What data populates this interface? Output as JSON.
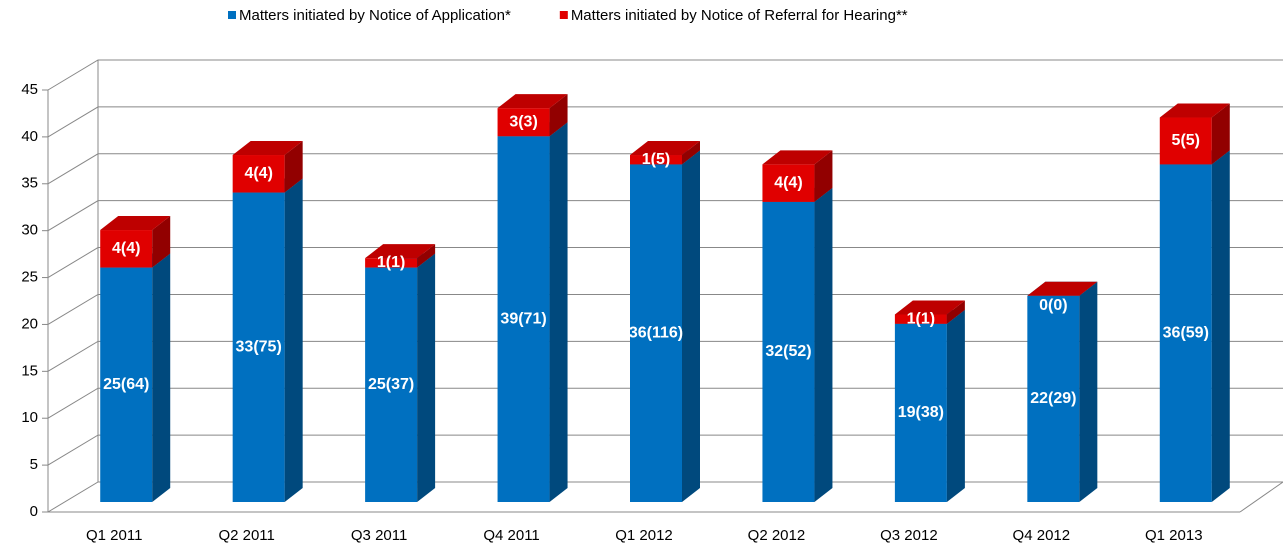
{
  "chart_data": {
    "type": "bar3d_stacked",
    "categories": [
      "Q1 2011",
      "Q2 2011",
      "Q3 2011",
      "Q4 2011",
      "Q1 2012",
      "Q2 2012",
      "Q3 2012",
      "Q4 2012",
      "Q1 2013"
    ],
    "series": [
      {
        "name": "Matters initiated by Notice of Application*",
        "color": "#0070c0",
        "values": [
          25,
          33,
          25,
          39,
          36,
          32,
          19,
          22,
          36
        ],
        "value_labels": [
          "25(64)",
          "33(75)",
          "25(37)",
          "39(71)",
          "36(116)",
          "32(52)",
          "19(38)",
          "22(29)",
          "36(59)"
        ]
      },
      {
        "name": "Matters initiated by Notice of Referral for Hearing**",
        "color": "#e00000",
        "values": [
          4,
          4,
          1,
          3,
          1,
          4,
          1,
          0,
          5
        ],
        "value_labels": [
          "4(4)",
          "4(4)",
          "1(1)",
          "3(3)",
          "1(5)",
          "4(4)",
          "1(1)",
          "0(0)",
          "5(5)"
        ]
      }
    ],
    "ylim": [
      0,
      45
    ],
    "yticks": [
      0,
      5,
      10,
      15,
      20,
      25,
      30,
      35,
      40,
      45
    ],
    "grid": true,
    "legend": "top"
  }
}
